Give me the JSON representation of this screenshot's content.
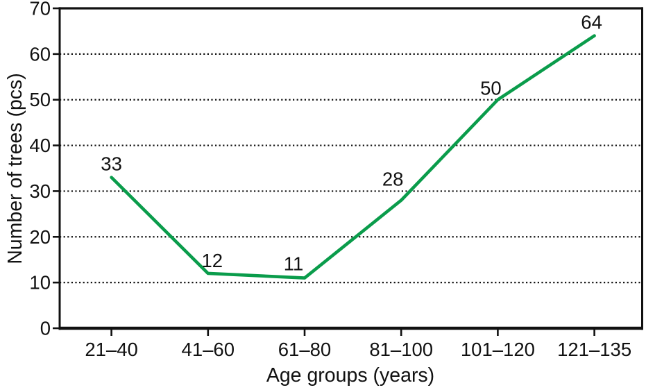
{
  "page": {
    "background": "#ffffff"
  },
  "chart_data": {
    "type": "line",
    "title": "",
    "xlabel": "Age groups (years)",
    "ylabel": "Number of trees (pcs)",
    "categories": [
      "21–40",
      "41–60",
      "61–80",
      "81–100",
      "101–120",
      "121–135"
    ],
    "values": [
      33,
      12,
      11,
      28,
      50,
      64
    ],
    "point_labels": [
      "33",
      "12",
      "11",
      "28",
      "50",
      "64"
    ],
    "ylim": [
      0,
      70
    ],
    "yticks": [
      0,
      10,
      20,
      30,
      40,
      50,
      60,
      70
    ],
    "grid": "horizontal dotted gridlines at each y tick",
    "legend_position": "none",
    "line_color": "#0a9c4b",
    "axis_color": "#111111",
    "text_color": "#111111",
    "gridline_color": "#111111"
  }
}
